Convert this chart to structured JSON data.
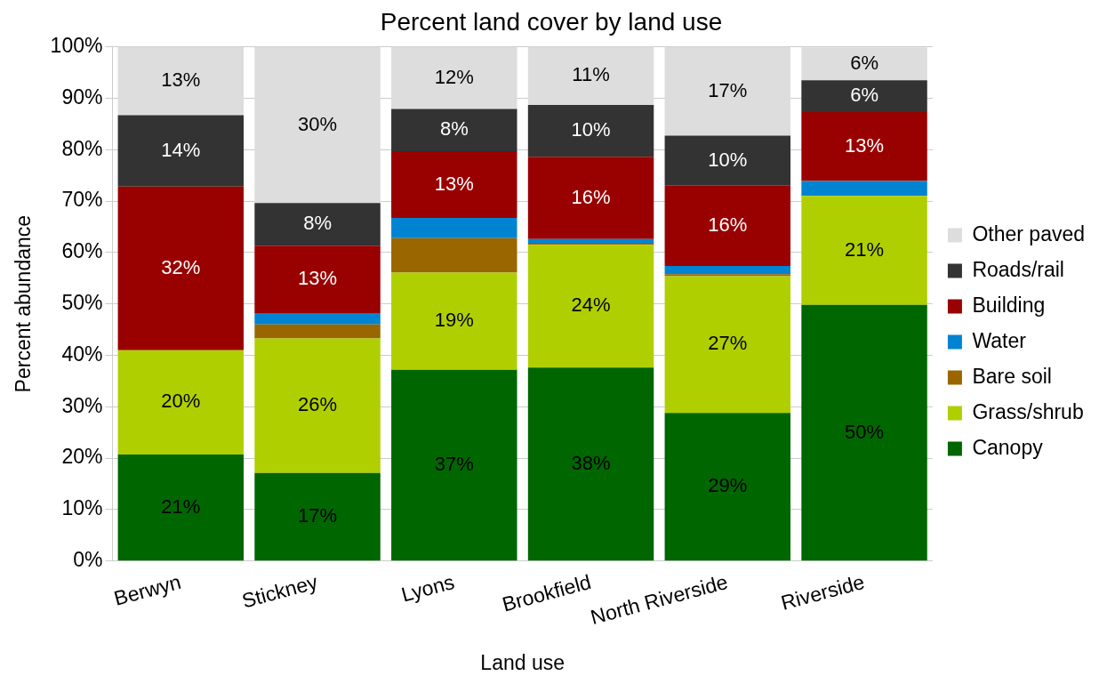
{
  "chart_data": {
    "type": "bar",
    "title": "Percent land cover by land use",
    "xlabel": "Land use",
    "ylabel": "Percent abundance",
    "categories": [
      "Berwyn",
      "Stickney",
      "Lyons",
      "Brookfield",
      "North Riverside",
      "Riverside"
    ],
    "stacked": true,
    "ylim": [
      0,
      100
    ],
    "yticks": [
      {
        "value": 0,
        "label": "0%"
      },
      {
        "value": 10,
        "label": "10%"
      },
      {
        "value": 20,
        "label": "20%"
      },
      {
        "value": 30,
        "label": "30%"
      },
      {
        "value": 40,
        "label": "40%"
      },
      {
        "value": 50,
        "label": "50%"
      },
      {
        "value": 60,
        "label": "60%"
      },
      {
        "value": 70,
        "label": "70%"
      },
      {
        "value": 80,
        "label": "80%"
      },
      {
        "value": 90,
        "label": "90%"
      },
      {
        "value": 100,
        "label": "100%"
      }
    ],
    "grid": "y",
    "legend": "right",
    "series": [
      {
        "name": "Canopy",
        "color": "#006600",
        "values": [
          20.7,
          17.1,
          37.2,
          37.6,
          28.8,
          49.8
        ],
        "value_labels": [
          "21%",
          "17%",
          "37%",
          "38%",
          "29%",
          "50%"
        ]
      },
      {
        "name": "Grass/shrub",
        "color": "#b0cf00",
        "values": [
          20.3,
          26.2,
          18.9,
          23.9,
          26.6,
          21.2
        ],
        "value_labels": [
          "20%",
          "26%",
          "19%",
          "24%",
          "27%",
          "21%"
        ]
      },
      {
        "name": "Bare soil",
        "color": "#996600",
        "values": [
          0,
          2.7,
          6.7,
          0.2,
          0.4,
          0
        ]
      },
      {
        "name": "Water",
        "color": "#0084d1",
        "values": [
          0,
          2.2,
          3.9,
          0.9,
          1.6,
          2.9
        ]
      },
      {
        "name": "Building",
        "color": "#990000",
        "values": [
          31.8,
          13.1,
          13.0,
          16.0,
          15.6,
          13.4
        ],
        "value_labels": [
          "32%",
          "13%",
          "13%",
          "16%",
          "16%",
          "13%"
        ]
      },
      {
        "name": "Roads/rail",
        "color": "#333333",
        "values": [
          13.9,
          8.3,
          8.2,
          10.1,
          9.7,
          6.2
        ],
        "value_labels": [
          "14%",
          "8%",
          "8%",
          "10%",
          "10%",
          "6%"
        ]
      },
      {
        "name": "Other paved",
        "color": "#dddddd",
        "values": [
          13.3,
          30.4,
          12.1,
          11.3,
          17.3,
          6.4
        ],
        "value_labels": [
          "13%",
          "30%",
          "12%",
          "11%",
          "17%",
          "6%"
        ]
      }
    ]
  }
}
